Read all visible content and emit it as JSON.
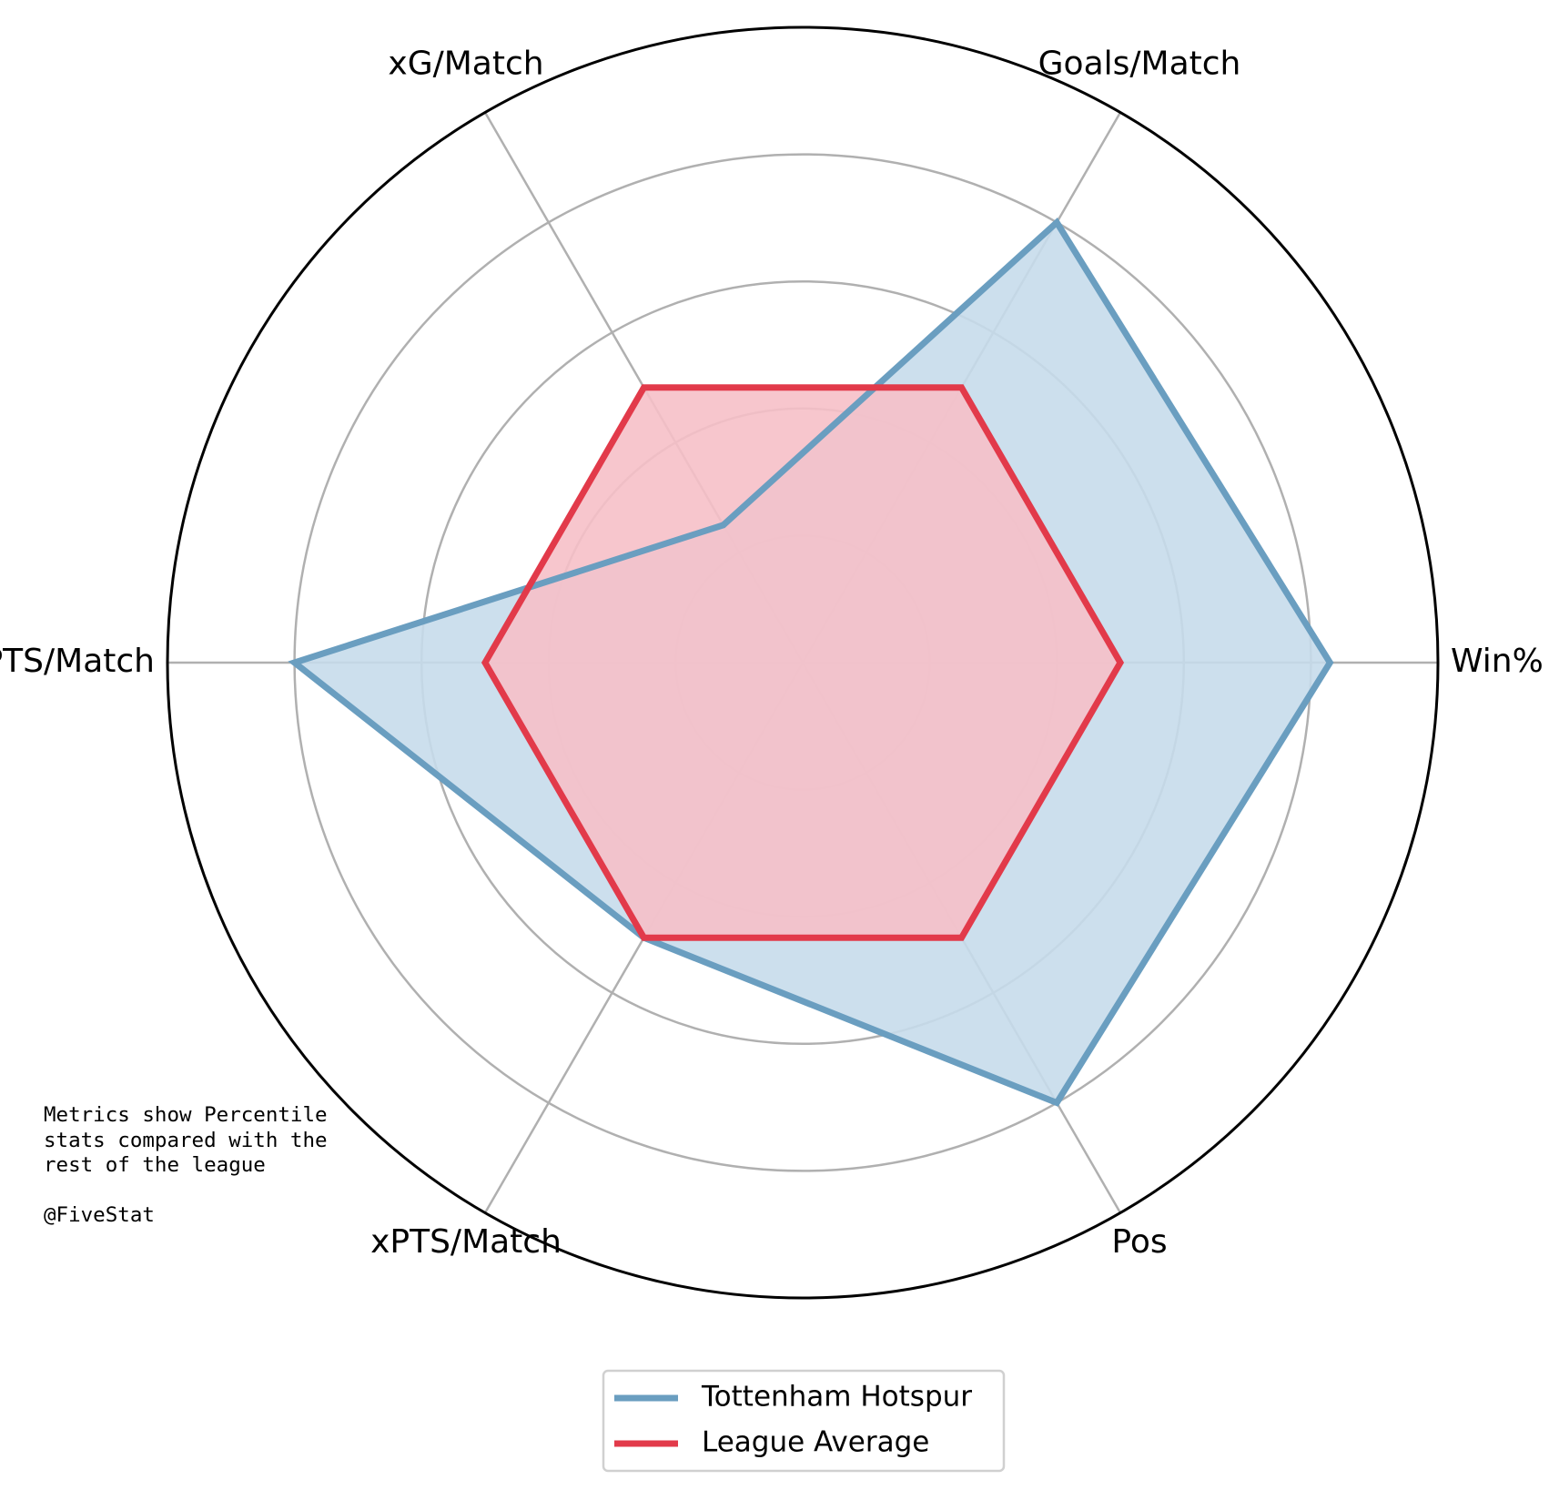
{
  "chart_data": {
    "type": "radar",
    "categories": [
      "Win%",
      "Goals/Match",
      "xG/Match",
      "PTS/Match",
      "xPTS/Match",
      "Pos"
    ],
    "series": [
      {
        "name": "Tottenham Hotspur",
        "values": [
          83,
          80,
          25,
          80,
          50,
          80
        ],
        "color": "#6a9ec0",
        "fill": "#c6dbeb"
      },
      {
        "name": "League Average",
        "values": [
          50,
          50,
          50,
          50,
          50,
          50
        ],
        "color": "#e23a4a",
        "fill": "#f6c0c8"
      }
    ],
    "rlim": [
      0,
      100
    ],
    "rings": [
      20,
      40,
      60,
      80
    ],
    "grid": true,
    "legend": "bottom-center",
    "colors": {
      "grid": "#b0b0b0",
      "frame": "#000000"
    }
  },
  "note": {
    "lines": [
      "Metrics show Percentile",
      "stats compared with the",
      "rest of the league",
      "",
      "@FiveStat"
    ]
  }
}
